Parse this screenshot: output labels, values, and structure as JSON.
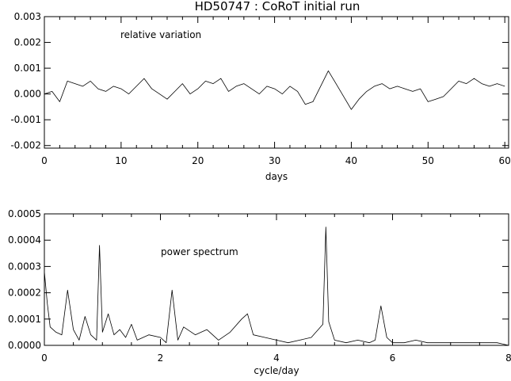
{
  "title": "HD50747 : CoRoT initial run",
  "chart_data": [
    {
      "type": "line",
      "annotation": "relative variation",
      "xlabel": "days",
      "ylabel": "",
      "xlim": [
        0,
        60.5
      ],
      "ylim": [
        -0.0021,
        0.003
      ],
      "xticks": [
        0,
        10,
        20,
        30,
        40,
        50,
        60
      ],
      "yticks": [
        -0.002,
        -0.001,
        0.0,
        0.001,
        0.002,
        0.003
      ],
      "xtick_labels": [
        "0",
        "10",
        "20",
        "30",
        "40",
        "50",
        "60"
      ],
      "ytick_labels": [
        "-0.002",
        "-0.001",
        "0.000",
        "0.001",
        "0.002",
        "0.003"
      ],
      "grid": false,
      "series": [
        {
          "x": [
            0,
            1,
            2,
            3,
            4,
            5,
            6,
            7,
            8,
            9,
            10,
            11,
            12,
            13,
            14,
            15,
            16,
            17,
            18,
            19,
            20,
            21,
            22,
            23,
            24,
            25,
            26,
            27,
            28,
            29,
            30,
            31,
            32,
            33,
            34,
            35,
            36,
            37,
            38,
            39,
            40,
            41,
            42,
            43,
            44,
            45,
            46,
            47,
            48,
            49,
            50,
            51,
            52,
            53,
            54,
            55,
            56,
            57,
            58,
            59,
            60
          ],
          "y": [
            0.0,
            0.0001,
            -0.0003,
            0.0005,
            0.0004,
            0.0003,
            0.0005,
            0.0002,
            0.0001,
            0.0003,
            0.0002,
            0.0,
            0.0003,
            0.0006,
            0.0002,
            0.0,
            -0.0002,
            0.0001,
            0.0004,
            0.0,
            0.0002,
            0.0005,
            0.0004,
            0.0006,
            0.0001,
            0.0003,
            0.0004,
            0.0002,
            0.0,
            0.0003,
            0.0002,
            0.0,
            0.0003,
            0.0001,
            -0.0004,
            -0.0003,
            0.0003,
            0.0009,
            0.0004,
            -0.0001,
            -0.0006,
            -0.0002,
            0.0001,
            0.0003,
            0.0004,
            0.0002,
            0.0003,
            0.0002,
            0.0001,
            0.0002,
            -0.0003,
            -0.0002,
            -0.0001,
            0.0002,
            0.0005,
            0.0004,
            0.0006,
            0.0004,
            0.0003,
            0.0004,
            0.0003
          ]
        }
      ]
    },
    {
      "type": "line",
      "annotation": "power spectrum",
      "xlabel": "cycle/day",
      "ylabel": "",
      "xlim": [
        0,
        8
      ],
      "ylim": [
        0,
        0.0005
      ],
      "xticks": [
        0,
        2,
        4,
        6,
        8
      ],
      "yticks": [
        0.0,
        0.0001,
        0.0002,
        0.0003,
        0.0004,
        0.0005
      ],
      "xtick_labels": [
        "0",
        "2",
        "4",
        "6",
        "8"
      ],
      "ytick_labels": [
        "0.0000",
        "0.0001",
        "0.0002",
        "0.0003",
        "0.0004",
        "0.0005"
      ],
      "grid": false,
      "series": [
        {
          "x": [
            0.0,
            0.05,
            0.1,
            0.2,
            0.3,
            0.4,
            0.5,
            0.6,
            0.7,
            0.8,
            0.9,
            0.95,
            1.0,
            1.1,
            1.2,
            1.3,
            1.4,
            1.5,
            1.6,
            1.8,
            2.0,
            2.1,
            2.2,
            2.3,
            2.4,
            2.6,
            2.8,
            3.0,
            3.2,
            3.4,
            3.5,
            3.6,
            3.8,
            4.0,
            4.2,
            4.4,
            4.6,
            4.8,
            4.85,
            4.9,
            5.0,
            5.2,
            5.4,
            5.6,
            5.7,
            5.8,
            5.9,
            6.0,
            6.2,
            6.4,
            6.6,
            6.8,
            7.0,
            7.2,
            7.4,
            7.6,
            7.8,
            8.0
          ],
          "y": [
            0.00028,
            0.00016,
            7e-05,
            5e-05,
            4e-05,
            0.00021,
            6e-05,
            2e-05,
            0.00011,
            4e-05,
            2e-05,
            0.00038,
            5e-05,
            0.00012,
            4e-05,
            6e-05,
            3e-05,
            8e-05,
            2e-05,
            4e-05,
            3e-05,
            1e-05,
            0.00021,
            2e-05,
            7e-05,
            4e-05,
            6e-05,
            2e-05,
            5e-05,
            0.0001,
            0.00012,
            4e-05,
            3e-05,
            2e-05,
            1e-05,
            2e-05,
            3e-05,
            8e-05,
            0.00045,
            9e-05,
            2e-05,
            1e-05,
            2e-05,
            1e-05,
            2e-05,
            0.00015,
            3e-05,
            1e-05,
            1e-05,
            2e-05,
            1e-05,
            1e-05,
            1e-05,
            1e-05,
            1e-05,
            1e-05,
            1e-05,
            0.0
          ]
        }
      ]
    }
  ]
}
